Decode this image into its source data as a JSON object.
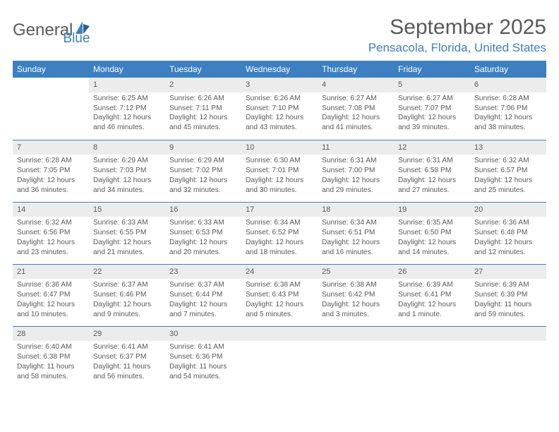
{
  "brand": {
    "main": "General",
    "sub": "Blue"
  },
  "title": "September 2025",
  "location": "Pensacola, Florida, United States",
  "colors": {
    "accent": "#3c80c2",
    "text": "#595959",
    "header_bg": "#3c80c2",
    "header_fg": "#ffffff",
    "daynum_bg": "#ececec",
    "row_border": "#3c80c2"
  },
  "weekdays": [
    "Sunday",
    "Monday",
    "Tuesday",
    "Wednesday",
    "Thursday",
    "Friday",
    "Saturday"
  ],
  "weeks": [
    [
      null,
      {
        "n": "1",
        "sr": "Sunrise: 6:25 AM",
        "ss": "Sunset: 7:12 PM",
        "dl1": "Daylight: 12 hours",
        "dl2": "and 46 minutes."
      },
      {
        "n": "2",
        "sr": "Sunrise: 6:26 AM",
        "ss": "Sunset: 7:11 PM",
        "dl1": "Daylight: 12 hours",
        "dl2": "and 45 minutes."
      },
      {
        "n": "3",
        "sr": "Sunrise: 6:26 AM",
        "ss": "Sunset: 7:10 PM",
        "dl1": "Daylight: 12 hours",
        "dl2": "and 43 minutes."
      },
      {
        "n": "4",
        "sr": "Sunrise: 6:27 AM",
        "ss": "Sunset: 7:08 PM",
        "dl1": "Daylight: 12 hours",
        "dl2": "and 41 minutes."
      },
      {
        "n": "5",
        "sr": "Sunrise: 6:27 AM",
        "ss": "Sunset: 7:07 PM",
        "dl1": "Daylight: 12 hours",
        "dl2": "and 39 minutes."
      },
      {
        "n": "6",
        "sr": "Sunrise: 6:28 AM",
        "ss": "Sunset: 7:06 PM",
        "dl1": "Daylight: 12 hours",
        "dl2": "and 38 minutes."
      }
    ],
    [
      {
        "n": "7",
        "sr": "Sunrise: 6:28 AM",
        "ss": "Sunset: 7:05 PM",
        "dl1": "Daylight: 12 hours",
        "dl2": "and 36 minutes."
      },
      {
        "n": "8",
        "sr": "Sunrise: 6:29 AM",
        "ss": "Sunset: 7:03 PM",
        "dl1": "Daylight: 12 hours",
        "dl2": "and 34 minutes."
      },
      {
        "n": "9",
        "sr": "Sunrise: 6:29 AM",
        "ss": "Sunset: 7:02 PM",
        "dl1": "Daylight: 12 hours",
        "dl2": "and 32 minutes."
      },
      {
        "n": "10",
        "sr": "Sunrise: 6:30 AM",
        "ss": "Sunset: 7:01 PM",
        "dl1": "Daylight: 12 hours",
        "dl2": "and 30 minutes."
      },
      {
        "n": "11",
        "sr": "Sunrise: 6:31 AM",
        "ss": "Sunset: 7:00 PM",
        "dl1": "Daylight: 12 hours",
        "dl2": "and 29 minutes."
      },
      {
        "n": "12",
        "sr": "Sunrise: 6:31 AM",
        "ss": "Sunset: 6:58 PM",
        "dl1": "Daylight: 12 hours",
        "dl2": "and 27 minutes."
      },
      {
        "n": "13",
        "sr": "Sunrise: 6:32 AM",
        "ss": "Sunset: 6:57 PM",
        "dl1": "Daylight: 12 hours",
        "dl2": "and 25 minutes."
      }
    ],
    [
      {
        "n": "14",
        "sr": "Sunrise: 6:32 AM",
        "ss": "Sunset: 6:56 PM",
        "dl1": "Daylight: 12 hours",
        "dl2": "and 23 minutes."
      },
      {
        "n": "15",
        "sr": "Sunrise: 6:33 AM",
        "ss": "Sunset: 6:55 PM",
        "dl1": "Daylight: 12 hours",
        "dl2": "and 21 minutes."
      },
      {
        "n": "16",
        "sr": "Sunrise: 6:33 AM",
        "ss": "Sunset: 6:53 PM",
        "dl1": "Daylight: 12 hours",
        "dl2": "and 20 minutes."
      },
      {
        "n": "17",
        "sr": "Sunrise: 6:34 AM",
        "ss": "Sunset: 6:52 PM",
        "dl1": "Daylight: 12 hours",
        "dl2": "and 18 minutes."
      },
      {
        "n": "18",
        "sr": "Sunrise: 6:34 AM",
        "ss": "Sunset: 6:51 PM",
        "dl1": "Daylight: 12 hours",
        "dl2": "and 16 minutes."
      },
      {
        "n": "19",
        "sr": "Sunrise: 6:35 AM",
        "ss": "Sunset: 6:50 PM",
        "dl1": "Daylight: 12 hours",
        "dl2": "and 14 minutes."
      },
      {
        "n": "20",
        "sr": "Sunrise: 6:36 AM",
        "ss": "Sunset: 6:48 PM",
        "dl1": "Daylight: 12 hours",
        "dl2": "and 12 minutes."
      }
    ],
    [
      {
        "n": "21",
        "sr": "Sunrise: 6:36 AM",
        "ss": "Sunset: 6:47 PM",
        "dl1": "Daylight: 12 hours",
        "dl2": "and 10 minutes."
      },
      {
        "n": "22",
        "sr": "Sunrise: 6:37 AM",
        "ss": "Sunset: 6:46 PM",
        "dl1": "Daylight: 12 hours",
        "dl2": "and 9 minutes."
      },
      {
        "n": "23",
        "sr": "Sunrise: 6:37 AM",
        "ss": "Sunset: 6:44 PM",
        "dl1": "Daylight: 12 hours",
        "dl2": "and 7 minutes."
      },
      {
        "n": "24",
        "sr": "Sunrise: 6:38 AM",
        "ss": "Sunset: 6:43 PM",
        "dl1": "Daylight: 12 hours",
        "dl2": "and 5 minutes."
      },
      {
        "n": "25",
        "sr": "Sunrise: 6:38 AM",
        "ss": "Sunset: 6:42 PM",
        "dl1": "Daylight: 12 hours",
        "dl2": "and 3 minutes."
      },
      {
        "n": "26",
        "sr": "Sunrise: 6:39 AM",
        "ss": "Sunset: 6:41 PM",
        "dl1": "Daylight: 12 hours",
        "dl2": "and 1 minute."
      },
      {
        "n": "27",
        "sr": "Sunrise: 6:39 AM",
        "ss": "Sunset: 6:39 PM",
        "dl1": "Daylight: 11 hours",
        "dl2": "and 59 minutes."
      }
    ],
    [
      {
        "n": "28",
        "sr": "Sunrise: 6:40 AM",
        "ss": "Sunset: 6:38 PM",
        "dl1": "Daylight: 11 hours",
        "dl2": "and 58 minutes."
      },
      {
        "n": "29",
        "sr": "Sunrise: 6:41 AM",
        "ss": "Sunset: 6:37 PM",
        "dl1": "Daylight: 11 hours",
        "dl2": "and 56 minutes."
      },
      {
        "n": "30",
        "sr": "Sunrise: 6:41 AM",
        "ss": "Sunset: 6:36 PM",
        "dl1": "Daylight: 11 hours",
        "dl2": "and 54 minutes."
      },
      null,
      null,
      null,
      null
    ]
  ]
}
